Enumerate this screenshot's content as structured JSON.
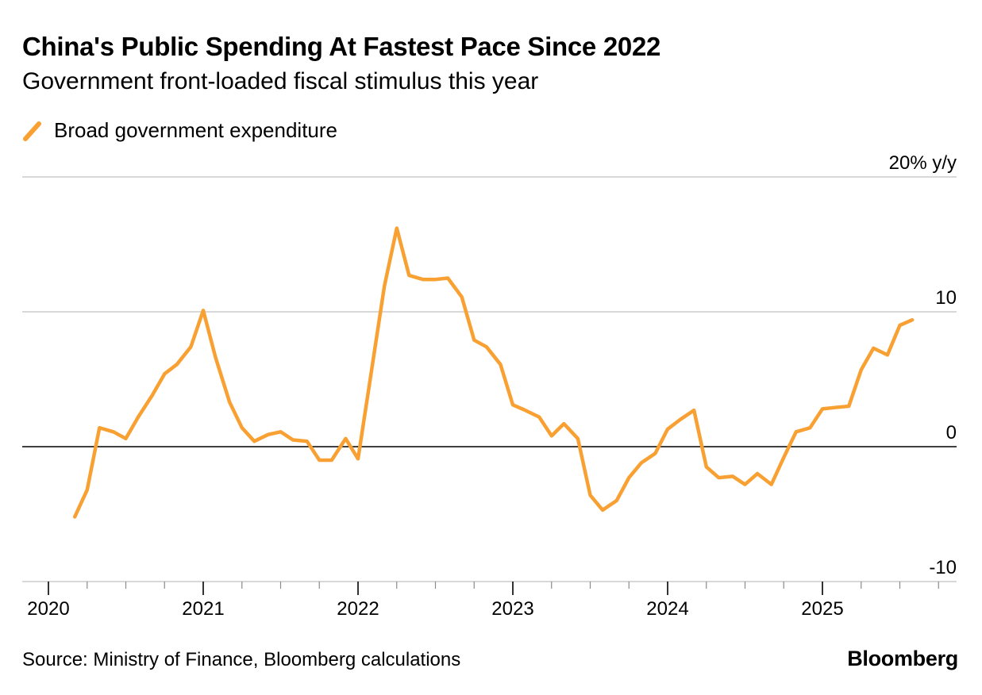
{
  "chart_data": {
    "type": "line",
    "title": "China's Public Spending At Fastest Pace Since 2022",
    "subtitle": "Government front-loaded fiscal stimulus this year",
    "xlabel": "",
    "ylabel": "% y/y",
    "y_axis_position": "right",
    "ylim": [
      -10,
      20
    ],
    "yticks": [
      -10,
      0,
      10,
      20
    ],
    "ytick_labels": [
      "-10",
      "0",
      "10",
      "20% y/y"
    ],
    "xlim": [
      2020.0,
      2026.0
    ],
    "xticks": [
      2020,
      2021,
      2022,
      2023,
      2024,
      2025
    ],
    "xtick_labels": [
      "2020",
      "2021",
      "2022",
      "2023",
      "2024",
      "2025"
    ],
    "minor_ticks_per_year": 4,
    "gridlines": true,
    "zero_line": true,
    "legend_position": "top-left",
    "series": [
      {
        "name": "Broad government expenditure",
        "color": "#F9A033",
        "points": [
          [
            2020.17,
            -5.2
          ],
          [
            2020.25,
            -3.2
          ],
          [
            2020.33,
            1.4
          ],
          [
            2020.42,
            1.1
          ],
          [
            2020.5,
            0.6
          ],
          [
            2020.58,
            2.2
          ],
          [
            2020.67,
            3.8
          ],
          [
            2020.75,
            5.4
          ],
          [
            2020.83,
            6.1
          ],
          [
            2020.92,
            7.4
          ],
          [
            2021.0,
            10.1
          ],
          [
            2021.08,
            6.6
          ],
          [
            2021.17,
            3.3
          ],
          [
            2021.25,
            1.4
          ],
          [
            2021.33,
            0.4
          ],
          [
            2021.42,
            0.9
          ],
          [
            2021.5,
            1.1
          ],
          [
            2021.58,
            0.5
          ],
          [
            2021.67,
            0.4
          ],
          [
            2021.75,
            -1.0
          ],
          [
            2021.83,
            -1.0
          ],
          [
            2021.92,
            0.6
          ],
          [
            2022.0,
            -0.9
          ],
          [
            2022.08,
            5.1
          ],
          [
            2022.17,
            11.9
          ],
          [
            2022.25,
            16.2
          ],
          [
            2022.33,
            12.7
          ],
          [
            2022.42,
            12.4
          ],
          [
            2022.5,
            12.4
          ],
          [
            2022.58,
            12.5
          ],
          [
            2022.67,
            11.1
          ],
          [
            2022.75,
            7.9
          ],
          [
            2022.83,
            7.4
          ],
          [
            2022.92,
            6.1
          ],
          [
            2023.0,
            3.1
          ],
          [
            2023.08,
            2.7
          ],
          [
            2023.17,
            2.2
          ],
          [
            2023.25,
            0.8
          ],
          [
            2023.33,
            1.7
          ],
          [
            2023.42,
            0.6
          ],
          [
            2023.5,
            -3.6
          ],
          [
            2023.58,
            -4.7
          ],
          [
            2023.67,
            -4.0
          ],
          [
            2023.75,
            -2.3
          ],
          [
            2023.83,
            -1.2
          ],
          [
            2023.92,
            -0.5
          ],
          [
            2024.0,
            1.3
          ],
          [
            2024.08,
            2.0
          ],
          [
            2024.17,
            2.7
          ],
          [
            2024.25,
            -1.5
          ],
          [
            2024.33,
            -2.3
          ],
          [
            2024.42,
            -2.2
          ],
          [
            2024.5,
            -2.8
          ],
          [
            2024.58,
            -2.0
          ],
          [
            2024.67,
            -2.8
          ],
          [
            2024.75,
            -0.8
          ],
          [
            2024.83,
            1.1
          ],
          [
            2024.92,
            1.4
          ],
          [
            2025.0,
            2.8
          ],
          [
            2025.08,
            2.9
          ],
          [
            2025.17,
            3.0
          ],
          [
            2025.25,
            5.7
          ],
          [
            2025.33,
            7.3
          ],
          [
            2025.42,
            6.8
          ],
          [
            2025.5,
            9.0
          ],
          [
            2025.58,
            9.4
          ]
        ]
      }
    ],
    "source": "Source: Ministry of Finance, Bloomberg calculations",
    "brand": "Bloomberg"
  },
  "colors": {
    "line": "#F9A033",
    "grid": "#CCCCCC",
    "zero": "#000000",
    "text": "#000000"
  }
}
